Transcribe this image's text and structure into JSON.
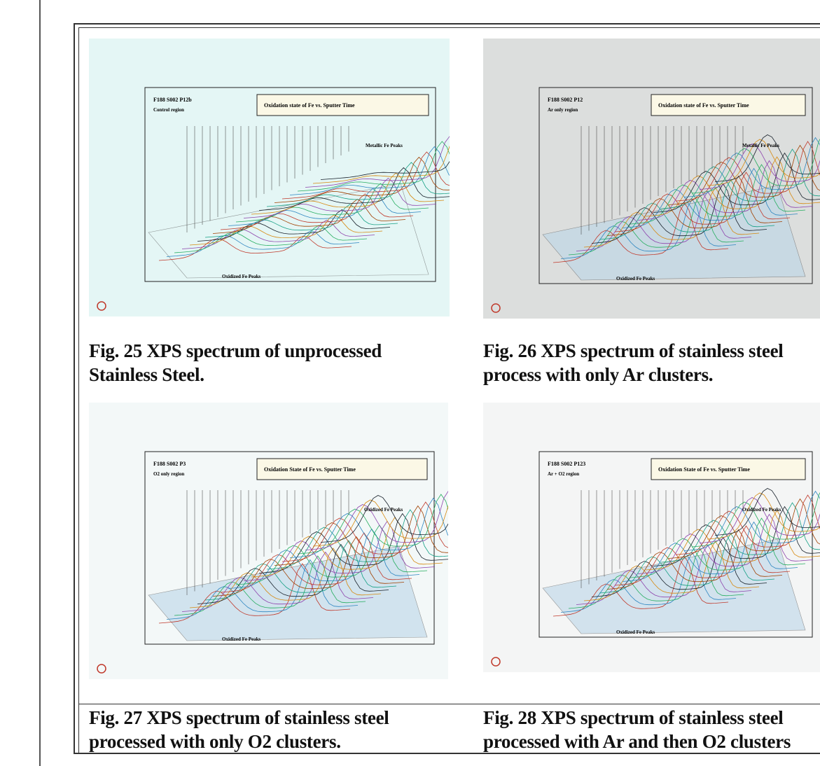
{
  "figures": [
    {
      "label": "F188 S002 P12b",
      "region": "Control region",
      "plot_title": "Oxidation state of Fe vs. Sputter Time",
      "peak_label_top": "Metallic Fe Peaks",
      "peak_label_bottom": "Oxidized Fe Peaks",
      "caption": [
        "Fig. 25  XPS spectrum of unprocessed",
        "Stainless Steel."
      ]
    },
    {
      "label": "F188 S002 P12",
      "region": "Ar only region",
      "plot_title": "Oxidation state of Fe vs. Sputter Time",
      "peak_label_top": "Metallic Fe Peaks",
      "peak_label_bottom": "Oxidized Fe Peaks",
      "caption": [
        "Fig. 26 XPS spectrum of stainless steel",
        "process with only Ar clusters."
      ]
    },
    {
      "label": "F188 S002 P3",
      "region": "O2 only region",
      "plot_title": "Oxidation State of Fe vs. Sputter Time",
      "peak_label_top": "Oxidized Fe Peaks",
      "peak_label_bottom": "Oxidized Fe Peaks",
      "caption": [
        "Fig. 27  XPS spectrum of stainless steel",
        "processed with only O2 clusters."
      ]
    },
    {
      "label": "F188 S002 P123",
      "region": "Ar + O2 region",
      "plot_title": "Oxidation State of Fe vs. Sputter Time",
      "peak_label_top": "Oxidized Fe Peaks",
      "peak_label_bottom": "Oxidized Fe Peaks",
      "caption": [
        "Fig. 28  XPS spectrum of stainless steel",
        "processed with Ar and then O2 clusters"
      ]
    }
  ]
}
